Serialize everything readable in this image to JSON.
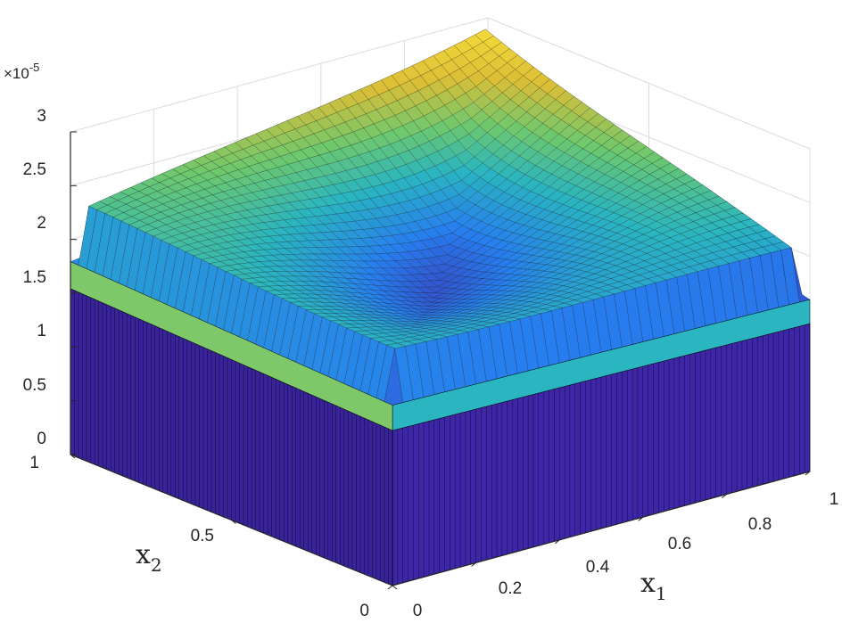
{
  "chart_data": {
    "type": "surface",
    "title": "",
    "xlabel": "x1",
    "ylabel": "x2",
    "zlabel": "",
    "xlim": [
      0,
      1
    ],
    "ylim": [
      0,
      1
    ],
    "zlim": [
      0,
      3e-05
    ],
    "z_multiplier": "×10-5",
    "x_ticks": [
      "0",
      "0.2",
      "0.4",
      "0.6",
      "0.8",
      "1"
    ],
    "y_ticks": [
      "0",
      "0.5",
      "1"
    ],
    "z_ticks": [
      "0",
      "0.5",
      "1",
      "1.5",
      "2",
      "2.5",
      "3"
    ],
    "grid": true,
    "colormap": "parula",
    "edge_color": "#000000",
    "corner_heights_1e5": {
      "x1=0,x2=1": 2.3,
      "x1=1,x2=0": 2.05,
      "x1=0,x2=0": 2.15,
      "x1=1,x2=1": 3.0
    },
    "saddle_center_1e5": 1.75,
    "boundary_drop_width": 0.02
  },
  "colors": {
    "surface_low": "#3e26a8",
    "surface_mid": "#2ab5c0",
    "surface_high": "#f9e03a",
    "grid": "#dcdcdc",
    "axis": "#262626"
  }
}
